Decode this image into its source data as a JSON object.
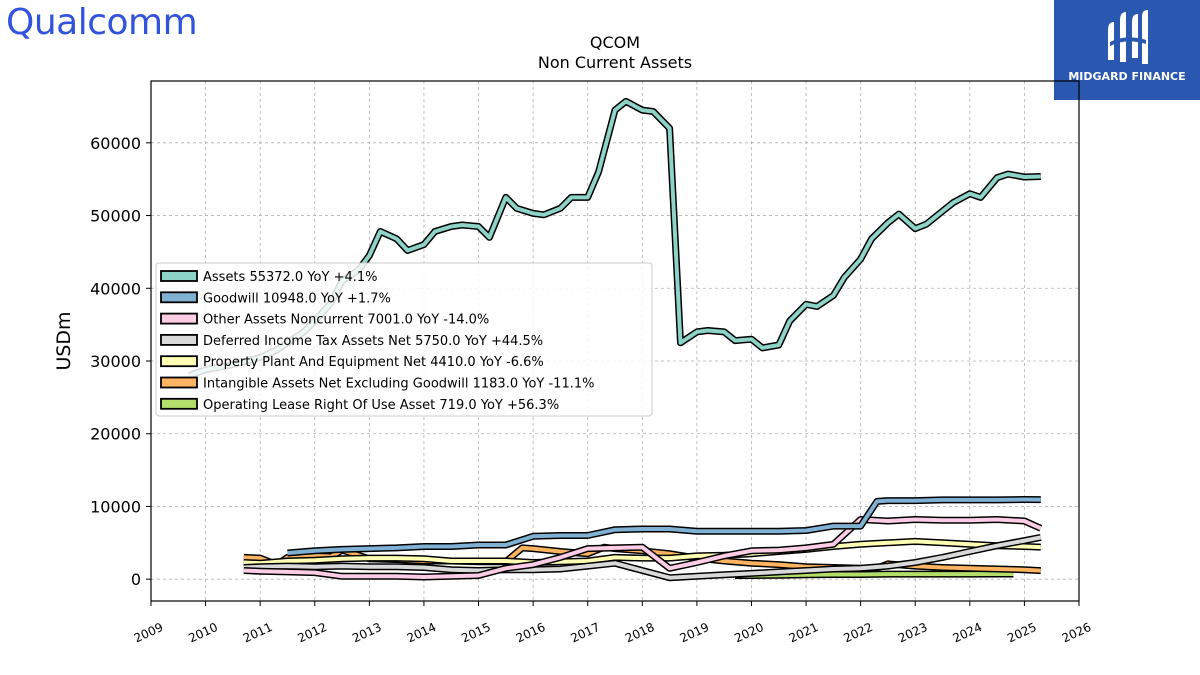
{
  "brand": {
    "left_logo": "Qualcomm",
    "right_logo": "MIDGARD FINANCE"
  },
  "chart_data": {
    "type": "line",
    "title": "QCOM",
    "subtitle": "Non Current  Assets",
    "ylabel": "USDm",
    "xlim": [
      2009,
      2026
    ],
    "ylim": [
      -3000,
      68500
    ],
    "xticks": [
      2009,
      2010,
      2011,
      2012,
      2013,
      2014,
      2015,
      2016,
      2017,
      2018,
      2019,
      2020,
      2021,
      2022,
      2023,
      2024,
      2025,
      2026
    ],
    "yticks": [
      0,
      10000,
      20000,
      30000,
      40000,
      50000,
      60000
    ],
    "grid": true,
    "legend_position": "center-left",
    "series": [
      {
        "name": "Assets",
        "legend": "Assets  55372.0 YoY +4.1%",
        "color": "#8dd3c7",
        "x": [
          2009.7,
          2010.0,
          2010.5,
          2011.0,
          2011.3,
          2011.5,
          2011.8,
          2012.0,
          2012.3,
          2012.5,
          2012.8,
          2013.0,
          2013.2,
          2013.5,
          2013.7,
          2014.0,
          2014.2,
          2014.5,
          2014.7,
          2015.0,
          2015.2,
          2015.5,
          2015.7,
          2016.0,
          2016.2,
          2016.5,
          2016.7,
          2017.0,
          2017.2,
          2017.5,
          2017.7,
          2018.0,
          2018.2,
          2018.5,
          2018.7,
          2019.0,
          2019.2,
          2019.5,
          2019.7,
          2020.0,
          2020.2,
          2020.5,
          2020.7,
          2021.0,
          2021.2,
          2021.5,
          2021.7,
          2022.0,
          2022.2,
          2022.5,
          2022.7,
          2023.0,
          2023.2,
          2023.5,
          2023.7,
          2024.0,
          2024.2,
          2024.5,
          2024.7,
          2025.0,
          2025.3
        ],
        "y": [
          28000,
          28800,
          29500,
          30500,
          31500,
          32500,
          34000,
          35500,
          38000,
          41000,
          42500,
          44500,
          47800,
          46800,
          45200,
          46000,
          47800,
          48500,
          48700,
          48500,
          47000,
          52500,
          51000,
          50300,
          50100,
          51000,
          52500,
          52500,
          56000,
          64500,
          65700,
          64500,
          64300,
          62000,
          32500,
          34000,
          34200,
          34000,
          32800,
          33000,
          31800,
          32200,
          35500,
          37800,
          37500,
          39000,
          41500,
          44000,
          46800,
          49000,
          50200,
          48200,
          48800,
          50600,
          51800,
          53000,
          52500,
          55200,
          55700,
          55300,
          55372
        ]
      },
      {
        "name": "Goodwill",
        "legend": "Goodwill  10948.0 YoY +1.7%",
        "color": "#80b1d3",
        "x": [
          2011.5,
          2012.0,
          2012.5,
          2013.0,
          2013.5,
          2014.0,
          2014.5,
          2015.0,
          2015.5,
          2016.0,
          2016.5,
          2017.0,
          2017.5,
          2018.0,
          2018.5,
          2019.0,
          2019.5,
          2020.0,
          2020.5,
          2021.0,
          2021.5,
          2022.0,
          2022.3,
          2022.5,
          2023.0,
          2023.5,
          2024.0,
          2024.5,
          2025.0,
          2025.3
        ],
        "y": [
          3600,
          3900,
          4100,
          4200,
          4300,
          4500,
          4500,
          4700,
          4700,
          5900,
          6000,
          6000,
          6800,
          6900,
          6900,
          6600,
          6600,
          6600,
          6600,
          6700,
          7300,
          7300,
          10700,
          10800,
          10800,
          10900,
          10900,
          10900,
          10950,
          10948
        ]
      },
      {
        "name": "Other Assets Noncurrent",
        "legend": "Other Assets Noncurrent  7001.0 YoY -14.0%",
        "color": "#fccde5",
        "x": [
          2010.7,
          2011.0,
          2011.5,
          2012.0,
          2012.5,
          2013.0,
          2013.5,
          2014.0,
          2014.5,
          2015.0,
          2015.5,
          2016.0,
          2016.5,
          2017.0,
          2017.5,
          2018.0,
          2018.5,
          2019.0,
          2019.5,
          2020.0,
          2020.5,
          2021.0,
          2021.5,
          2022.0,
          2022.5,
          2023.0,
          2023.5,
          2024.0,
          2024.5,
          2025.0,
          2025.3
        ],
        "y": [
          1200,
          1100,
          1000,
          900,
          400,
          400,
          400,
          300,
          400,
          500,
          1500,
          2000,
          3000,
          4200,
          4300,
          4400,
          1500,
          2300,
          3200,
          3900,
          4000,
          4300,
          4800,
          8200,
          8000,
          8200,
          8100,
          8100,
          8200,
          8000,
          7001
        ]
      },
      {
        "name": "Deferred Income Tax Assets Net",
        "legend": "Deferred Income Tax Assets Net  5750.0 YoY +44.5%",
        "color": "#d9d9d9",
        "x": [
          2010.7,
          2011.0,
          2011.5,
          2012.0,
          2012.5,
          2013.0,
          2013.5,
          2014.0,
          2014.5,
          2015.0,
          2015.5,
          2016.0,
          2016.5,
          2017.0,
          2017.5,
          2018.0,
          2018.5,
          2019.0,
          2019.5,
          2020.0,
          2020.5,
          2021.0,
          2021.5,
          2022.0,
          2022.5,
          2023.0,
          2023.5,
          2024.0,
          2024.5,
          2025.0,
          2025.3
        ],
        "y": [
          1600,
          1700,
          1800,
          1700,
          1800,
          1700,
          1700,
          1600,
          1300,
          1200,
          1300,
          1300,
          1400,
          1800,
          2200,
          1200,
          200,
          400,
          600,
          800,
          1000,
          1200,
          1400,
          1500,
          1800,
          2300,
          3000,
          3800,
          4600,
          5300,
          5750
        ]
      },
      {
        "name": "Property Plant And Equipment Net",
        "legend": "Property Plant And Equipment Net  4410.0 YoY -6.6%",
        "color": "#ffffb3",
        "x": [
          2010.7,
          2011.0,
          2011.5,
          2012.0,
          2012.5,
          2013.0,
          2013.5,
          2014.0,
          2014.5,
          2015.0,
          2015.5,
          2016.0,
          2016.5,
          2017.0,
          2017.5,
          2018.0,
          2018.5,
          2019.0,
          2019.5,
          2020.0,
          2020.5,
          2021.0,
          2021.5,
          2022.0,
          2022.5,
          2023.0,
          2023.5,
          2024.0,
          2024.5,
          2025.0,
          2025.3
        ],
        "y": [
          2300,
          2200,
          2500,
          2600,
          2800,
          2900,
          2900,
          2800,
          2500,
          2500,
          2500,
          2300,
          2400,
          2500,
          3000,
          2900,
          2900,
          3200,
          3300,
          3500,
          3800,
          4100,
          4500,
          4800,
          5000,
          5200,
          5000,
          4800,
          4600,
          4500,
          4410
        ]
      },
      {
        "name": "Intangible Assets Net Excluding Goodwill",
        "legend": "Intangible Assets Net Excluding Goodwill  1183.0 YoY -11.1%",
        "color": "#fdb462",
        "x": [
          2010.7,
          2011.0,
          2011.3,
          2011.5,
          2012.0,
          2012.3,
          2012.5,
          2013.0,
          2013.5,
          2014.0,
          2014.5,
          2015.0,
          2015.5,
          2015.8,
          2016.0,
          2016.5,
          2017.0,
          2017.3,
          2017.5,
          2018.0,
          2018.5,
          2019.0,
          2019.5,
          2020.0,
          2020.5,
          2021.0,
          2021.5,
          2022.0,
          2022.3,
          2022.5,
          2023.0,
          2023.5,
          2024.0,
          2024.5,
          2025.0,
          2025.3
        ],
        "y": [
          3000,
          2900,
          2000,
          3000,
          3200,
          3100,
          4000,
          2800,
          2700,
          2500,
          2500,
          2400,
          2400,
          4300,
          4200,
          3800,
          3500,
          4400,
          4200,
          3900,
          3500,
          2900,
          2500,
          2200,
          2000,
          1700,
          1600,
          1500,
          1500,
          2100,
          1800,
          1600,
          1500,
          1400,
          1300,
          1183
        ]
      },
      {
        "name": "Operating Lease Right Of Use Asset",
        "legend": "Operating Lease Right Of Use Asset  719.0 YoY +56.3%",
        "color": "#b3de69",
        "x": [
          2019.7,
          2020.0,
          2020.5,
          2021.0,
          2021.5,
          2022.0,
          2022.5,
          2023.0,
          2023.5,
          2024.0,
          2024.5,
          2024.8
        ],
        "y": [
          500,
          500,
          550,
          600,
          650,
          650,
          700,
          700,
          700,
          700,
          710,
          719
        ]
      }
    ]
  }
}
